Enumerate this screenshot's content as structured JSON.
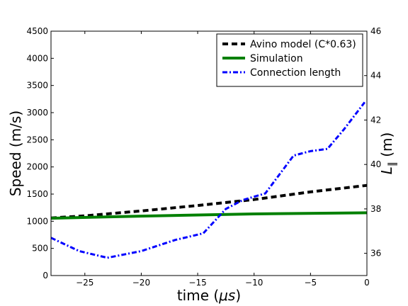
{
  "chart_data": {
    "type": "line",
    "x_axis": {
      "label_prefix": "time (",
      "label_mu": "μs",
      "label_suffix": ")",
      "range": [
        -28,
        0
      ],
      "ticks": [
        -25,
        -20,
        -15,
        -10,
        -5,
        0
      ],
      "tick_labels": [
        "−25",
        "−20",
        "−15",
        "−10",
        "−5",
        "0"
      ]
    },
    "y_axis_left": {
      "label": "Speed (m/s)",
      "range": [
        0,
        4500
      ],
      "ticks": [
        0,
        500,
        1000,
        1500,
        2000,
        2500,
        3000,
        3500,
        4000,
        4500
      ],
      "tick_labels": [
        "0",
        "500",
        "1000",
        "1500",
        "2000",
        "2500",
        "3000",
        "3500",
        "4000",
        "4500"
      ]
    },
    "y_axis_right": {
      "label_main": "L",
      "label_sub": "∥",
      "label_unit": " (m)",
      "range": [
        35,
        46
      ],
      "ticks": [
        36,
        38,
        40,
        42,
        44,
        46
      ],
      "tick_labels": [
        "36",
        "38",
        "40",
        "42",
        "44",
        "46"
      ]
    },
    "legend_position": "top-right",
    "grid": false,
    "series": [
      {
        "name": "Avino model (C*0.63)",
        "axis": "left",
        "color": "#000000",
        "style": "dashed",
        "x": [
          -28,
          -25,
          -20,
          -15,
          -10,
          -5,
          0
        ],
        "y": [
          1060,
          1100,
          1190,
          1290,
          1400,
          1540,
          1660
        ]
      },
      {
        "name": "Simulation",
        "axis": "left",
        "color": "#008000",
        "style": "solid",
        "x": [
          -28,
          -20,
          -10,
          0
        ],
        "y": [
          1055,
          1095,
          1135,
          1155
        ]
      },
      {
        "name": "Connection length",
        "axis": "right",
        "color": "#0000ff",
        "style": "dashdot",
        "x": [
          -28,
          -25.5,
          -23,
          -20,
          -17,
          -14.5,
          -12.5,
          -11,
          -9,
          -6.5,
          -5,
          -3.5,
          -2,
          -0.2
        ],
        "y": [
          36.7,
          36.1,
          35.8,
          36.1,
          36.6,
          36.9,
          38.0,
          38.4,
          38.7,
          40.4,
          40.6,
          40.7,
          41.6,
          42.8
        ]
      }
    ]
  }
}
